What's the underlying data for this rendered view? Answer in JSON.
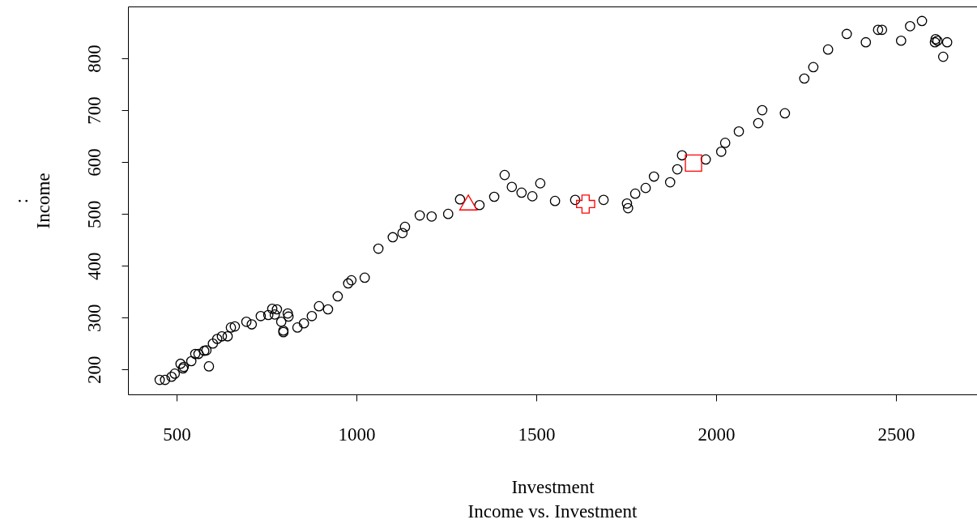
{
  "chart_data": {
    "type": "scatter",
    "title": "Income vs. Investment",
    "xlabel": "Investment",
    "ylabel": ":\nIncome",
    "xlim": [
      365,
      2725
    ],
    "ylim": [
      152,
      900
    ],
    "xticks": [
      500,
      1000,
      1500,
      2000,
      2500
    ],
    "yticks": [
      200,
      300,
      400,
      500,
      600,
      700,
      800
    ],
    "grid": false,
    "series": [
      {
        "color": "#000000",
        "marker": "circle",
        "x": [
          453,
          468,
          486,
          495,
          511,
          520,
          518,
          541,
          552,
          561,
          577,
          590,
          583,
          601,
          613,
          626,
          642,
          651,
          662,
          694,
          709,
          734,
          755,
          766,
          779,
          773,
          791,
          797,
          797,
          809,
          811,
          836,
          854,
          876,
          896,
          921,
          948,
          977,
          986,
          1023,
          1061,
          1101,
          1128,
          1135,
          1176,
          1209,
          1255,
          1288,
          1342,
          1383,
          1412,
          1432,
          1459,
          1489,
          1511,
          1552,
          1608,
          1687,
          1752,
          1755,
          1775,
          1804,
          1827,
          1872,
          1892,
          1905,
          1971,
          2014,
          2025,
          2063,
          2117,
          2128,
          2191,
          2245,
          2270,
          2311,
          2363,
          2416,
          2450,
          2461,
          2514,
          2539,
          2572,
          2608,
          2615,
          2610,
          2642,
          2631
        ],
        "values": [
          180,
          180,
          186,
          192,
          211,
          205,
          202,
          216,
          230,
          230,
          236,
          206,
          237,
          250,
          259,
          264,
          264,
          281,
          283,
          292,
          287,
          303,
          305,
          317,
          316,
          306,
          292,
          275,
          272,
          308,
          302,
          281,
          289,
          303,
          322,
          316,
          341,
          366,
          372,
          377,
          433,
          455,
          463,
          475,
          497,
          495,
          500,
          528,
          517,
          533,
          575,
          552,
          541,
          534,
          559,
          525,
          527,
          527,
          520,
          511,
          539,
          550,
          572,
          561,
          586,
          613,
          605,
          620,
          637,
          659,
          675,
          700,
          694,
          761,
          783,
          817,
          847,
          831,
          855,
          855,
          834,
          862,
          872,
          831,
          834,
          837,
          831,
          803
        ]
      },
      {
        "color": "#ff0000",
        "marker": "triangle",
        "x": [
          1311
        ],
        "values": [
          522
        ]
      },
      {
        "color": "#ff0000",
        "marker": "cross",
        "x": [
          1637
        ],
        "values": [
          519
        ]
      },
      {
        "color": "#ff0000",
        "marker": "square",
        "x": [
          1937
        ],
        "values": [
          598
        ]
      }
    ]
  }
}
